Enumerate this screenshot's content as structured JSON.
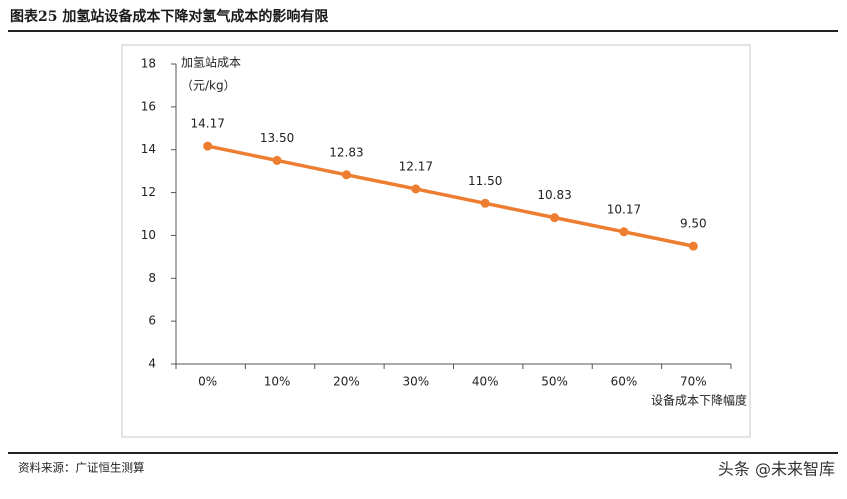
{
  "chart_data": {
    "type": "line",
    "title": "图表25 加氢站设备成本下降对氢气成本的影响有限",
    "y_label": [
      "加氢站成本",
      "（元/kg）"
    ],
    "x_label": "设备成本下降幅度",
    "source": "资料来源：广证恒生测算",
    "watermark": "头条 @未来智库",
    "categories": [
      "0%",
      "10%",
      "20%",
      "30%",
      "40%",
      "50%",
      "60%",
      "70%"
    ],
    "series": [
      {
        "name": "加氢站成本",
        "color": "#ED7D31",
        "values": [
          14.17,
          13.5,
          12.83,
          12.17,
          11.5,
          10.83,
          10.17,
          9.5
        ],
        "value_labels": [
          "14.17",
          "13.50",
          "12.83",
          "12.17",
          "11.50",
          "10.83",
          "10.17",
          "9.50"
        ]
      }
    ],
    "ylim": [
      4,
      18
    ],
    "yticks": [
      4,
      6,
      8,
      10,
      12,
      14,
      16,
      18
    ],
    "grid": false
  }
}
